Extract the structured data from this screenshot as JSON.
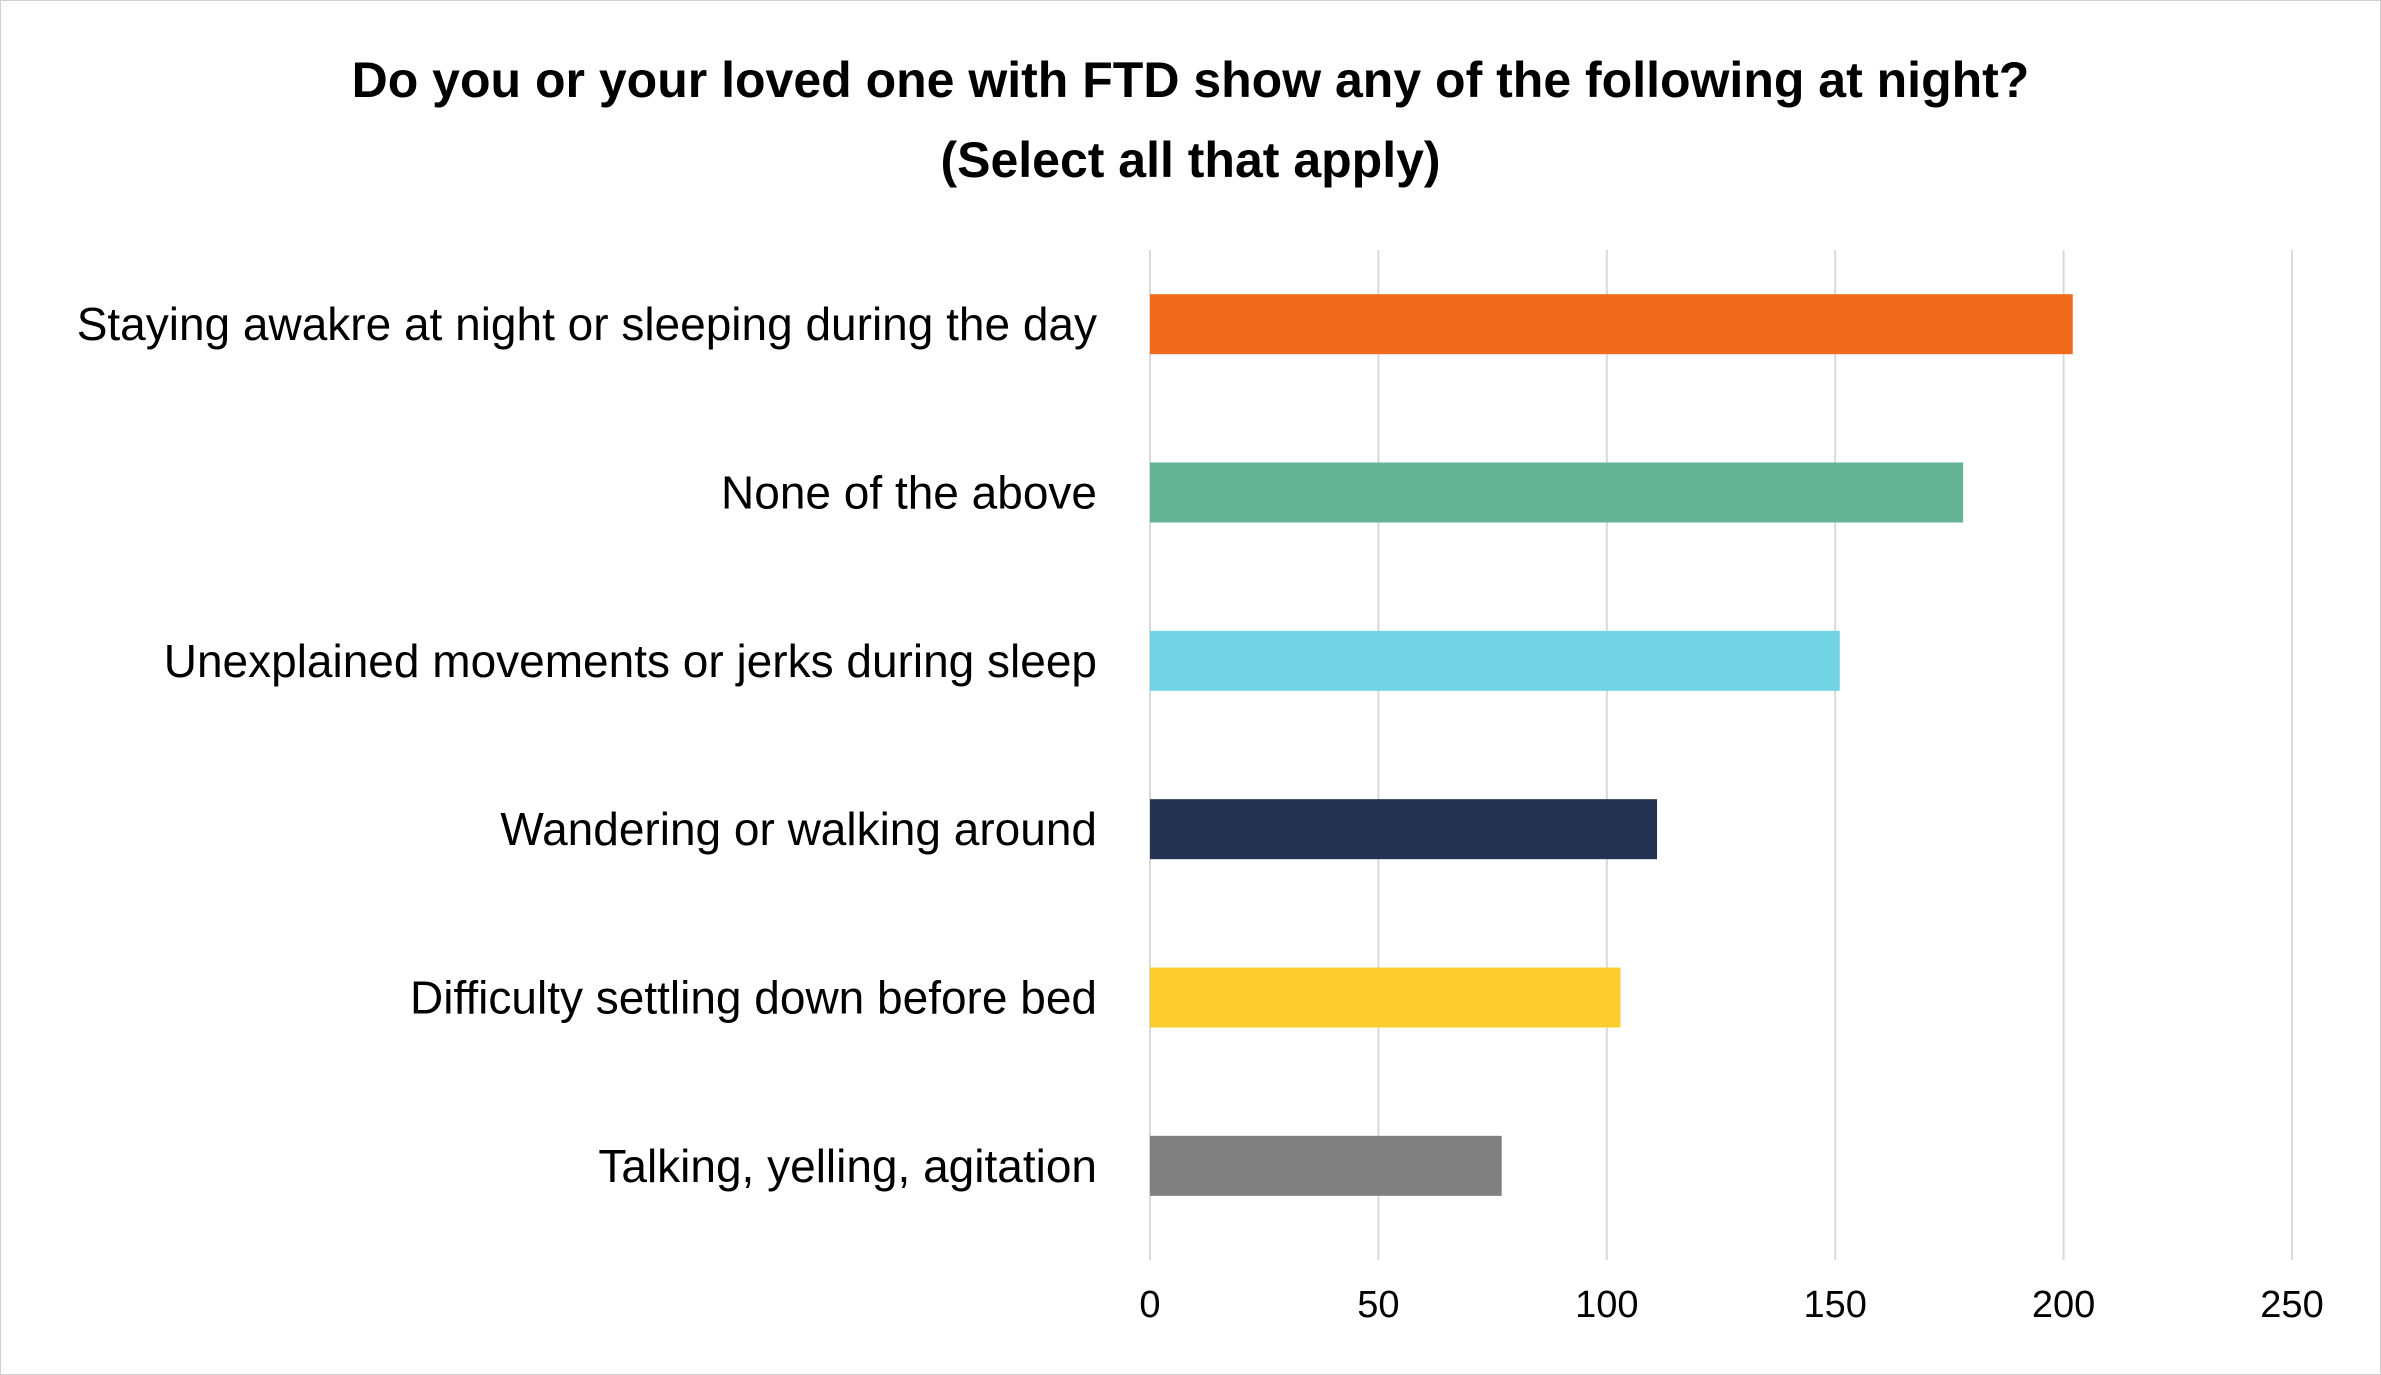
{
  "chart_data": {
    "type": "bar",
    "orientation": "horizontal",
    "title_lines": [
      "Do you or your loved one with FTD show any of the following at night?",
      "(Select all that apply)"
    ],
    "xlabel": "",
    "ylabel": "",
    "categories": [
      "Staying awakre at night or sleeping during the day",
      "None of the above",
      "Unexplained movements or jerks during sleep",
      "Wandering or walking around",
      "Difficulty settling down before bed",
      "Talking, yelling, agitation"
    ],
    "values": [
      202,
      178,
      151,
      111,
      103,
      77
    ],
    "colors": [
      "#F26A1B",
      "#63B394",
      "#72D3E4",
      "#243352",
      "#FDCE2D",
      "#808080"
    ],
    "xlim": [
      0,
      250
    ],
    "ticks": [
      "0",
      "50",
      "100",
      "150",
      "200",
      "250"
    ],
    "tick_values": [
      0,
      50,
      100,
      150,
      200,
      250
    ],
    "grid": true,
    "gridline_color": "#d9d9d9",
    "legend": "none"
  }
}
